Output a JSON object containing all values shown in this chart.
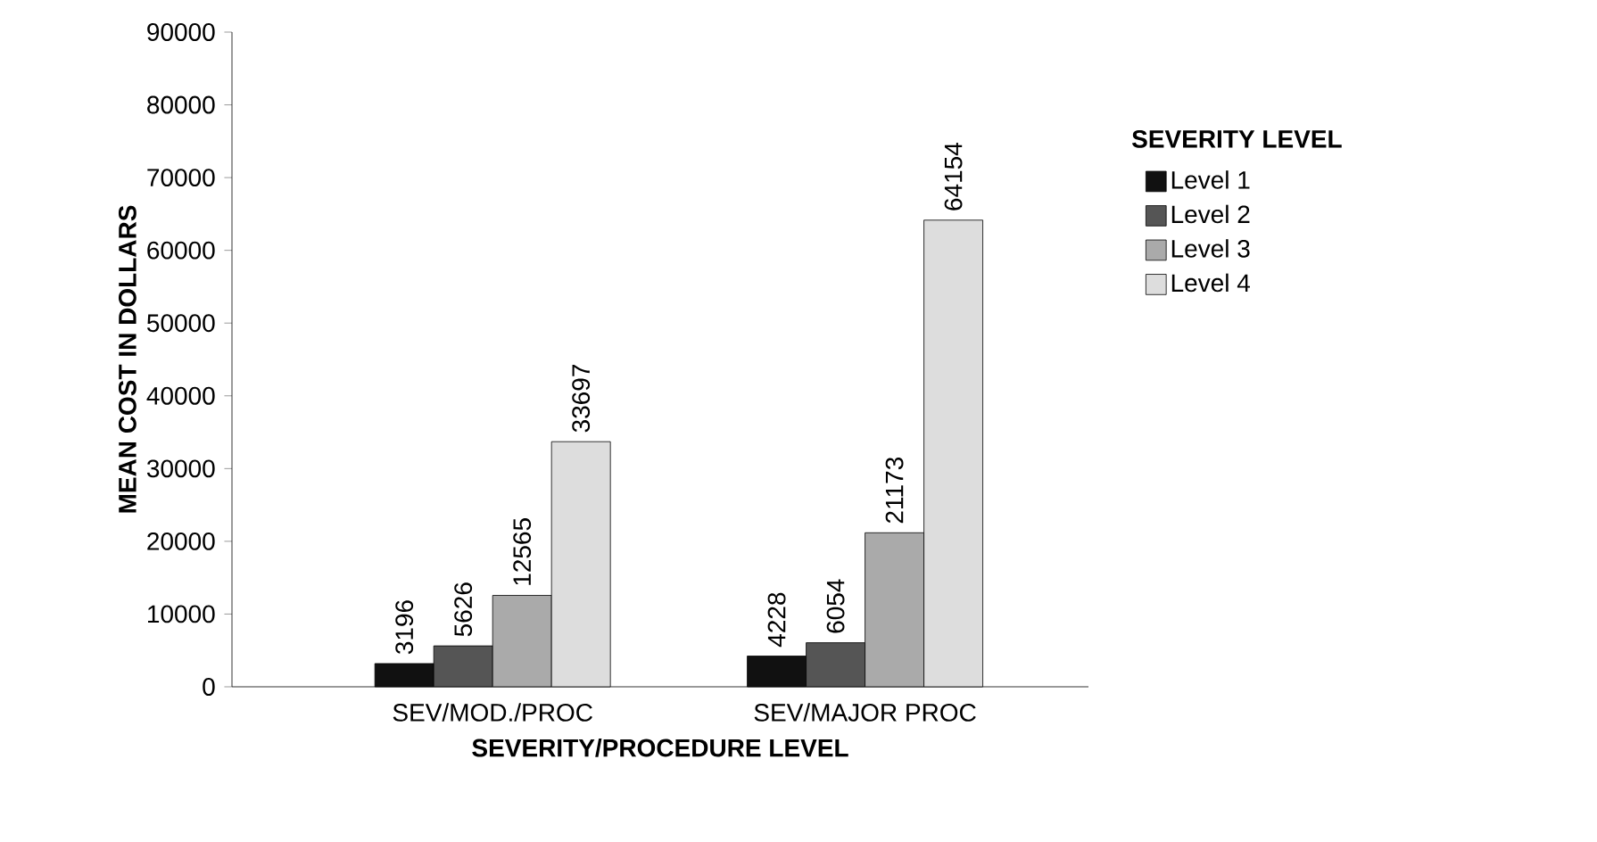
{
  "chart_data": {
    "type": "bar",
    "xlabel": "SEVERITY/PROCEDURE LEVEL",
    "ylabel": "MEAN COST IN DOLLARS",
    "legend_title": "SEVERITY LEVEL",
    "categories": [
      "SEV/MOD./PROC",
      "SEV/MAJOR PROC"
    ],
    "series": [
      {
        "name": "Level 1",
        "color": "#111111",
        "values": [
          3196,
          4228
        ]
      },
      {
        "name": "Level 2",
        "color": "#555555",
        "values": [
          5626,
          6054
        ]
      },
      {
        "name": "Level 3",
        "color": "#aaaaaa",
        "values": [
          12565,
          21173
        ]
      },
      {
        "name": "Level 4",
        "color": "#dddddd",
        "values": [
          33697,
          64154
        ]
      }
    ],
    "ylim": [
      0,
      90000
    ],
    "yticks": [
      0,
      10000,
      20000,
      30000,
      40000,
      50000,
      60000,
      70000,
      80000,
      90000
    ],
    "data_labels": true,
    "legend": "right",
    "grid": false
  }
}
